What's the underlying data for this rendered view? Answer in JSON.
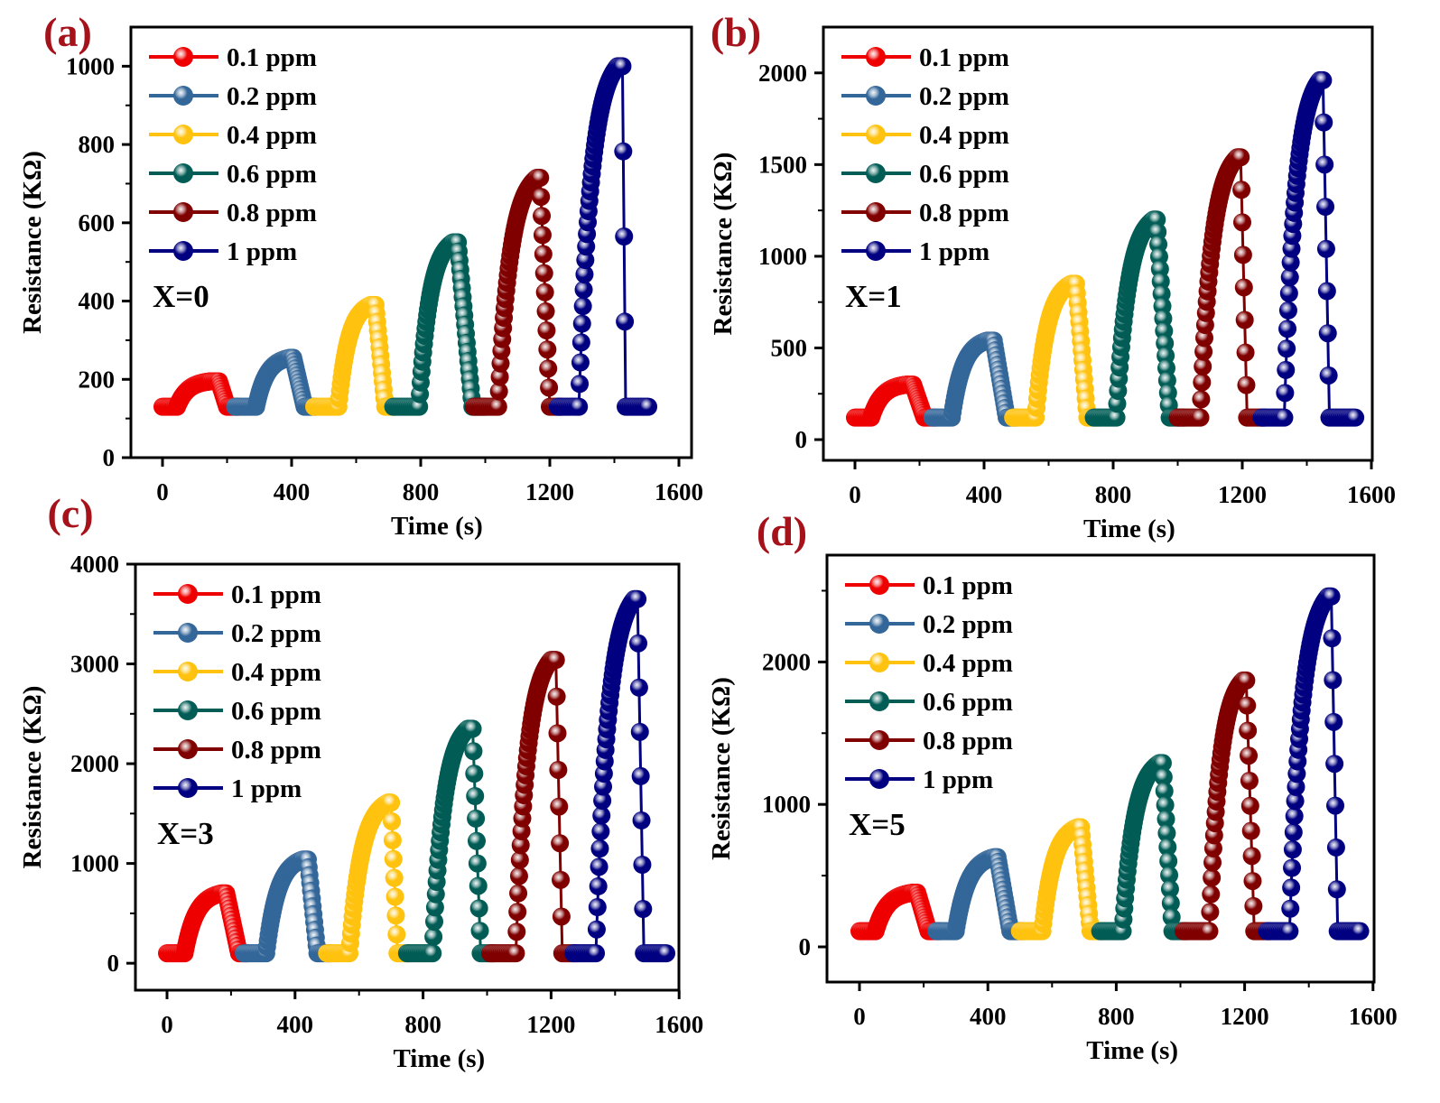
{
  "chart_data": [
    {
      "type": "line",
      "panel_label": "(a)",
      "annotation": "X=0",
      "xlabel": "Time (s)",
      "ylabel": "Resistance (KΩ)",
      "xlim": [
        -100,
        1610
      ],
      "ylim": [
        0,
        1100
      ],
      "xticks": [
        0,
        400,
        800,
        1200,
        1600
      ],
      "yticks": [
        0,
        200,
        400,
        600,
        800,
        1000
      ],
      "series": [
        {
          "name": "0.1 ppm",
          "color": "#ee0000",
          "baseline": 130,
          "peak": 195,
          "timing_s": [
            0,
            45,
            150,
            175,
            200,
            235
          ]
        },
        {
          "name": "0.2 ppm",
          "color": "#336699",
          "baseline": 130,
          "peak": 255,
          "timing_s": [
            225,
            290,
            395,
            405,
            440,
            475
          ]
        },
        {
          "name": "0.4 ppm",
          "color": "#ffc20e",
          "baseline": 130,
          "peak": 390,
          "timing_s": [
            470,
            545,
            645,
            660,
            690,
            720
          ]
        },
        {
          "name": "0.6 ppm",
          "color": "#005c55",
          "baseline": 130,
          "peak": 550,
          "timing_s": [
            715,
            795,
            900,
            915,
            960,
            1000
          ]
        },
        {
          "name": "0.8 ppm",
          "color": "#800000",
          "baseline": 130,
          "peak": 715,
          "timing_s": [
            965,
            1040,
            1160,
            1170,
            1200,
            1235
          ]
        },
        {
          "name": "1 ppm",
          "color": "#000080",
          "baseline": 130,
          "peak": 1000,
          "timing_s": [
            1225,
            1290,
            1410,
            1425,
            1435,
            1505
          ]
        }
      ]
    },
    {
      "type": "line",
      "panel_label": "(b)",
      "annotation": "X=1",
      "xlabel": "Time (s)",
      "ylabel": "Resistance (KΩ)",
      "xlim": [
        -100,
        1600
      ],
      "ylim": [
        -113,
        2250
      ],
      "xticks": [
        0,
        400,
        800,
        1200,
        1600
      ],
      "yticks": [
        0,
        500,
        1000,
        1500,
        2000
      ],
      "series": [
        {
          "name": "0.1 ppm",
          "color": "#ee0000",
          "baseline": 120,
          "peak": 300,
          "timing_s": [
            0,
            50,
            160,
            180,
            215,
            250
          ]
        },
        {
          "name": "0.2 ppm",
          "color": "#336699",
          "baseline": 120,
          "peak": 540,
          "timing_s": [
            240,
            300,
            410,
            430,
            470,
            500
          ]
        },
        {
          "name": "0.4 ppm",
          "color": "#ffc20e",
          "baseline": 120,
          "peak": 850,
          "timing_s": [
            490,
            560,
            670,
            685,
            720,
            755
          ]
        },
        {
          "name": "0.6 ppm",
          "color": "#005c55",
          "baseline": 120,
          "peak": 1200,
          "timing_s": [
            740,
            810,
            925,
            935,
            975,
            1020
          ]
        },
        {
          "name": "0.8 ppm",
          "color": "#800000",
          "baseline": 120,
          "peak": 1540,
          "timing_s": [
            1000,
            1070,
            1185,
            1195,
            1215,
            1270
          ]
        },
        {
          "name": "1 ppm",
          "color": "#000080",
          "baseline": 120,
          "peak": 1960,
          "timing_s": [
            1260,
            1330,
            1440,
            1450,
            1470,
            1550
          ]
        }
      ]
    },
    {
      "type": "line",
      "panel_label": "(c)",
      "annotation": "X=3",
      "xlabel": "Time (s)",
      "ylabel": "Resistance (KΩ)",
      "xlim": [
        -100,
        1600
      ],
      "ylim": [
        -270,
        4000
      ],
      "xticks": [
        0,
        400,
        800,
        1200,
        1600
      ],
      "yticks": [
        0,
        1000,
        2000,
        3000,
        4000
      ],
      "series": [
        {
          "name": "0.1 ppm",
          "color": "#ee0000",
          "baseline": 100,
          "peak": 700,
          "timing_s": [
            0,
            55,
            170,
            185,
            225,
            250
          ]
        },
        {
          "name": "0.2 ppm",
          "color": "#336699",
          "baseline": 100,
          "peak": 1040,
          "timing_s": [
            240,
            310,
            425,
            440,
            470,
            510
          ]
        },
        {
          "name": "0.4 ppm",
          "color": "#ffc20e",
          "baseline": 100,
          "peak": 1610,
          "timing_s": [
            500,
            570,
            690,
            700,
            720,
            760
          ]
        },
        {
          "name": "0.6 ppm",
          "color": "#005c55",
          "baseline": 100,
          "peak": 2350,
          "timing_s": [
            750,
            830,
            940,
            955,
            980,
            1020
          ]
        },
        {
          "name": "0.8 ppm",
          "color": "#800000",
          "baseline": 100,
          "peak": 3040,
          "timing_s": [
            1010,
            1090,
            1200,
            1215,
            1235,
            1280
          ]
        },
        {
          "name": "1 ppm",
          "color": "#000080",
          "baseline": 100,
          "peak": 3650,
          "timing_s": [
            1270,
            1340,
            1460,
            1470,
            1490,
            1560
          ]
        }
      ]
    },
    {
      "type": "line",
      "panel_label": "(d)",
      "annotation": "X=5",
      "xlabel": "Time (s)",
      "ylabel": "Resistance (KΩ)",
      "xlim": [
        -100,
        1600
      ],
      "ylim": [
        -247,
        2750
      ],
      "xticks": [
        0,
        400,
        800,
        1200,
        1600
      ],
      "yticks": [
        0,
        1000,
        2000
      ],
      "series": [
        {
          "name": "0.1 ppm",
          "color": "#ee0000",
          "baseline": 110,
          "peak": 380,
          "timing_s": [
            0,
            50,
            165,
            180,
            215,
            250
          ]
        },
        {
          "name": "0.2 ppm",
          "color": "#336699",
          "baseline": 110,
          "peak": 630,
          "timing_s": [
            240,
            300,
            420,
            430,
            470,
            510
          ]
        },
        {
          "name": "0.4 ppm",
          "color": "#ffc20e",
          "baseline": 110,
          "peak": 840,
          "timing_s": [
            500,
            570,
            680,
            690,
            720,
            760
          ]
        },
        {
          "name": "0.6 ppm",
          "color": "#005c55",
          "baseline": 110,
          "peak": 1290,
          "timing_s": [
            750,
            820,
            935,
            945,
            975,
            1020
          ]
        },
        {
          "name": "0.8 ppm",
          "color": "#800000",
          "baseline": 110,
          "peak": 1870,
          "timing_s": [
            1010,
            1090,
            1195,
            1205,
            1230,
            1280
          ]
        },
        {
          "name": "1 ppm",
          "color": "#000080",
          "baseline": 110,
          "peak": 2460,
          "timing_s": [
            1270,
            1340,
            1460,
            1470,
            1490,
            1560
          ]
        }
      ]
    }
  ]
}
